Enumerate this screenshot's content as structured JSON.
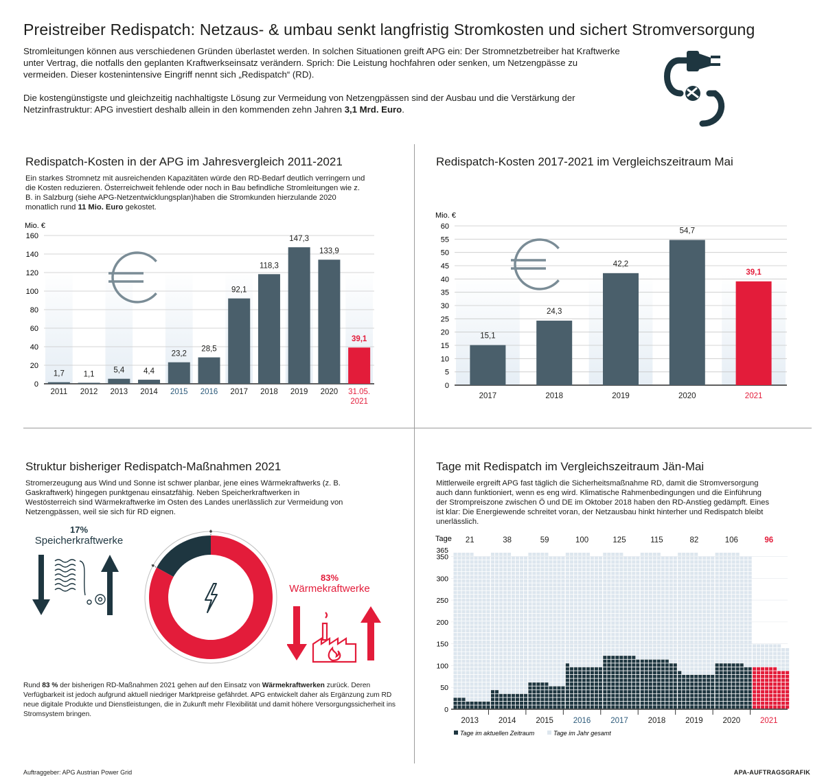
{
  "header": {
    "title": "Preistreiber Redispatch: Netzaus- & umbau senkt langfristig Stromkosten und sichert Stromversorgung",
    "intro_p1": "Stromleitungen können aus verschiedenen Gründen überlastet werden. In solchen Situationen greift APG ein: Der Stromnetzbetreiber hat Kraftwerke unter Vertrag, die notfalls den geplanten Kraftwerkseinsatz verändern. Sprich: Die Leistung hochfahren oder senken, um Netzengpässe zu vermeiden. Dieser kostenintensive Eingriff nennt sich „Redispatch“ (RD).",
    "intro_p2_start": "Die kostengünstigste und gleichzeitig nachhaltigste Lösung zur Vermeidung von Netzengpässen sind der Ausbau und die Verstärkung der Netzinfrastruktur: APG investiert deshalb allein in den kommenden zehn Jahren ",
    "intro_p2_bold": "3,1 Mrd. Euro",
    "intro_p2_end": ".",
    "icon": "power-plug-icon"
  },
  "section1": {
    "title": "Redispatch-Kosten in der APG im Jahresvergleich 2011-2021",
    "text_start": "Ein starkes Stromnetz mit ausreichenden Kapazitäten würde den RD-Bedarf deutlich verringern und die Kosten reduzieren. Österreichweit fehlende oder noch in Bau befindliche Stromleitungen wie z. B. in Salzburg (siehe APG-Netzentwicklungsplan)haben die Stromkunden hierzulande 2020 monatlich rund ",
    "text_bold": "11 Mio. Euro",
    "text_end": " gekostet."
  },
  "section2": {
    "title": "Redispatch-Kosten 2017-2021 im Vergleichszeitraum Mai"
  },
  "section3": {
    "title": "Struktur bisheriger Redispatch-Maßnahmen 2021",
    "text": "Stromerzeugung aus Wind und Sonne ist schwer planbar, jene eines Wärmekraftwerks (z. B. Gaskraftwerk) hingegen punktgenau einsatzfähig. Neben Speicherkraftwerken in Westösterreich sind Wärmekraftwerke im Osten des Landes unerlässlich zur Vermeidung von Netzengpässen, weil sie sich für RD eignen.",
    "speicher_pct": "17%",
    "speicher_label": "Speicherkraftwerke",
    "waerme_pct": "83%",
    "waerme_label": "Wärmekraftwerke",
    "bottom_1": "Rund ",
    "bottom_bold1": "83 %",
    "bottom_2": " der bisherigen RD-Maßnahmen 2021 gehen auf den Einsatz von ",
    "bottom_bold2": "Wärmekraftwerken",
    "bottom_3": "  zurück. Deren Verfügbarkeit ist jedoch aufgrund aktuell niedriger Marktpreise gefährdet. APG entwickelt daher als Ergänzung zum RD neue digitale Produkte und Dienstleistungen, die in Zukunft mehr Flexibilität und damit höhere Versorgungssicherheit ins Stromsystem bringen."
  },
  "section4": {
    "title": "Tage mit Redispatch im Vergleichszeitraum Jän-Mai",
    "text": "Mittlerweile ergreift APG fast täglich die Sicherheitsmaßnahme RD, damit die Stromversorgung auch dann funktioniert, wenn es eng wird. Klimatische Rahmenbedingungen und die Einführung der Strompreiszone zwischen Ö und DE im Oktober 2018 haben den RD-Anstieg  gedämpft. Eines ist klar: Die Energiewende schreitet voran, der Netzausbau hinkt hinterher und Redispatch bleibt unerlässlich."
  },
  "footer": {
    "left": "Auftraggeber: APG Austrian Power Grid",
    "right": "APA-AUFTRAGSGRAFIK"
  },
  "colors": {
    "bar": "#4a5f6b",
    "red": "#e31c3a",
    "highlight_blue": "#2c5a7a",
    "band": "#e6eef5",
    "grid": "#c8c8c8",
    "dark": "#1e3640"
  },
  "chart_data": [
    {
      "type": "bar",
      "ylabel": "Mio. €",
      "ylim": [
        0,
        160
      ],
      "yticks": [
        0,
        20,
        40,
        60,
        80,
        100,
        120,
        140,
        160
      ],
      "grid": true,
      "categories": [
        "2011",
        "2012",
        "2013",
        "2014",
        "2015",
        "2016",
        "2017",
        "2018",
        "2019",
        "2020",
        "31.05.\n2021"
      ],
      "values": [
        1.7,
        1.1,
        5.4,
        4.4,
        23.2,
        28.5,
        92.1,
        118.3,
        147.3,
        133.9,
        39.1
      ],
      "value_labels": [
        "1,7",
        "1,1",
        "5,4",
        "4,4",
        "23,2",
        "28,5",
        "92,1",
        "118,3",
        "147,3",
        "133,9",
        "39,1"
      ],
      "category_labels": [
        "2011",
        "2012",
        "2013",
        "2014",
        "2015",
        "2016",
        "2017",
        "2018",
        "2019",
        "2020",
        "31.05.",
        "2021"
      ],
      "highlight_blue_categories": [
        "2015",
        "2016"
      ],
      "highlight_red_category": "31.05.\n2021",
      "icon": "euro-icon"
    },
    {
      "type": "bar",
      "ylabel": "Mio. €",
      "ylim": [
        0,
        60
      ],
      "yticks": [
        0,
        5,
        10,
        15,
        20,
        25,
        30,
        35,
        40,
        45,
        50,
        55,
        60
      ],
      "grid": true,
      "categories": [
        "2017",
        "2018",
        "2019",
        "2020",
        "2021"
      ],
      "values": [
        15.1,
        24.3,
        42.2,
        54.7,
        39.1
      ],
      "value_labels": [
        "15,1",
        "24,3",
        "42,2",
        "54,7",
        "39,1"
      ],
      "highlight_red_category": "2021",
      "icon": "euro-icon"
    },
    {
      "type": "pie",
      "slices": [
        {
          "name": "Speicherkraftwerke",
          "value": 17
        },
        {
          "name": "Wärmekraftwerke",
          "value": 83
        }
      ],
      "icon": "lightning-icon"
    },
    {
      "type": "bar",
      "ylabel": "Tage",
      "ylim": [
        0,
        365
      ],
      "yticks": [
        0,
        50,
        100,
        150,
        200,
        250,
        300,
        350,
        365
      ],
      "categories": [
        "2013",
        "2014",
        "2015",
        "2016",
        "2017",
        "2018",
        "2019",
        "2020",
        "2021"
      ],
      "series": [
        {
          "name": "Tage im aktuellen Zeitraum",
          "values": [
            21,
            38,
            59,
            100,
            125,
            115,
            82,
            106,
            96
          ]
        },
        {
          "name": "Tage im Jahr gesamt",
          "values": [
            365,
            365,
            365,
            366,
            365,
            365,
            365,
            366,
            151
          ]
        }
      ],
      "top_labels": [
        "21",
        "38",
        "59",
        "100",
        "125",
        "115",
        "82",
        "106",
        "96"
      ],
      "highlight_blue_categories": [
        "2016",
        "2017"
      ],
      "highlight_red_category": "2021",
      "legend_position": "bottom"
    }
  ]
}
